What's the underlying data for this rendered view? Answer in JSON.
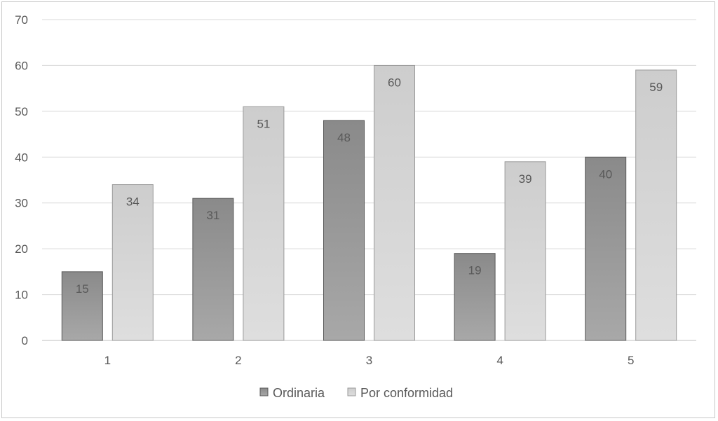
{
  "chart_data": {
    "type": "bar",
    "categories": [
      "1",
      "2",
      "3",
      "4",
      "5"
    ],
    "series": [
      {
        "name": "Ordinaria",
        "values": [
          15,
          31,
          48,
          19,
          40
        ]
      },
      {
        "name": "Por conformidad",
        "values": [
          34,
          51,
          60,
          39,
          59
        ]
      }
    ],
    "title": "",
    "xlabel": "",
    "ylabel": "",
    "ylim": [
      0,
      70
    ],
    "yticks": [
      "0",
      "10",
      "20",
      "30",
      "40",
      "50",
      "60",
      "70"
    ],
    "grid": true,
    "legend_position": "bottom",
    "colors": {
      "Ordinaria_top": "#8a8a8a",
      "Ordinaria_bottom": "#a6a6a6",
      "Por_conformidad_top": "#cfcfcf",
      "Por_conformidad_bottom": "#dcdcdc",
      "bar_border": "#595959",
      "bar_border_light": "#9a9a9a"
    }
  }
}
